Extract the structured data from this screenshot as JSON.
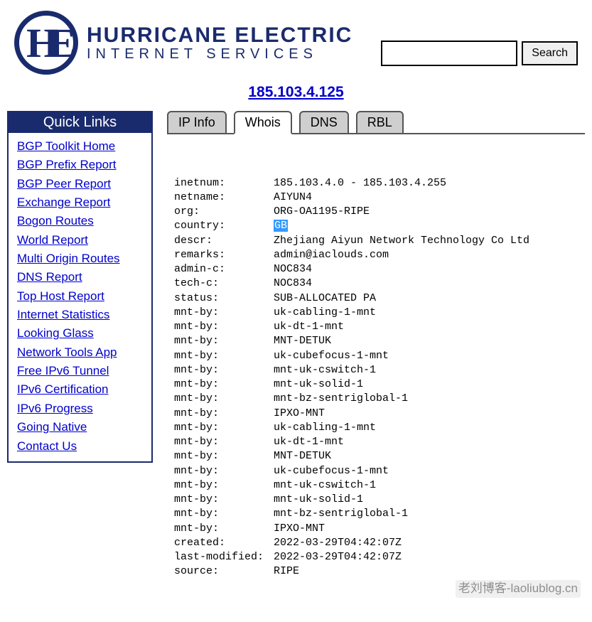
{
  "header": {
    "logo_initials": "HE",
    "logo_title": "HURRICANE ELECTRIC",
    "logo_sub": "INTERNET SERVICES",
    "search_placeholder": "",
    "search_button": "Search"
  },
  "ip_address": "185.103.4.125",
  "sidebar": {
    "title": "Quick Links",
    "items": [
      "BGP Toolkit Home",
      "BGP Prefix Report",
      "BGP Peer Report",
      "Exchange Report",
      "Bogon Routes",
      "World Report",
      "Multi Origin Routes",
      "DNS Report",
      "Top Host Report",
      "Internet Statistics",
      "Looking Glass",
      "Network Tools App",
      "Free IPv6 Tunnel",
      "IPv6 Certification",
      "IPv6 Progress",
      "Going Native",
      "Contact Us"
    ]
  },
  "tabs": [
    {
      "label": "IP Info",
      "active": false
    },
    {
      "label": "Whois",
      "active": true
    },
    {
      "label": "DNS",
      "active": false
    },
    {
      "label": "RBL",
      "active": false
    }
  ],
  "whois": {
    "rows": [
      {
        "k": "inetnum:",
        "v": "185.103.4.0 - 185.103.4.255"
      },
      {
        "k": "netname:",
        "v": "AIYUN4"
      },
      {
        "k": "org:",
        "v": "ORG-OA1195-RIPE"
      },
      {
        "k": "country:",
        "v": "GB",
        "highlight": true
      },
      {
        "k": "descr:",
        "v": "Zhejiang Aiyun Network Technology Co Ltd"
      },
      {
        "k": "remarks:",
        "v": "admin@iaclouds.com"
      },
      {
        "k": "admin-c:",
        "v": "NOC834"
      },
      {
        "k": "tech-c:",
        "v": "NOC834"
      },
      {
        "k": "status:",
        "v": "SUB-ALLOCATED PA"
      },
      {
        "k": "mnt-by:",
        "v": "uk-cabling-1-mnt"
      },
      {
        "k": "mnt-by:",
        "v": "uk-dt-1-mnt"
      },
      {
        "k": "mnt-by:",
        "v": "MNT-DETUK"
      },
      {
        "k": "mnt-by:",
        "v": "uk-cubefocus-1-mnt"
      },
      {
        "k": "mnt-by:",
        "v": "mnt-uk-cswitch-1"
      },
      {
        "k": "mnt-by:",
        "v": "mnt-uk-solid-1"
      },
      {
        "k": "mnt-by:",
        "v": "mnt-bz-sentriglobal-1"
      },
      {
        "k": "mnt-by:",
        "v": "IPXO-MNT"
      },
      {
        "k": "mnt-by:",
        "v": "uk-cabling-1-mnt"
      },
      {
        "k": "mnt-by:",
        "v": "uk-dt-1-mnt"
      },
      {
        "k": "mnt-by:",
        "v": "MNT-DETUK"
      },
      {
        "k": "mnt-by:",
        "v": "uk-cubefocus-1-mnt"
      },
      {
        "k": "mnt-by:",
        "v": "mnt-uk-cswitch-1"
      },
      {
        "k": "mnt-by:",
        "v": "mnt-uk-solid-1"
      },
      {
        "k": "mnt-by:",
        "v": "mnt-bz-sentriglobal-1"
      },
      {
        "k": "mnt-by:",
        "v": "IPXO-MNT"
      },
      {
        "k": "created:",
        "v": "2022-03-29T04:42:07Z"
      },
      {
        "k": "last-modified:",
        "v": "2022-03-29T04:42:07Z"
      },
      {
        "k": "source:",
        "v": "RIPE"
      }
    ]
  },
  "watermark": "老刘博客-laoliublog.cn",
  "colors": {
    "brand": "#1a2b6d",
    "link": "#0000cc",
    "tab_inactive_bg": "#cfcfcf",
    "highlight_bg": "#3399ff"
  }
}
